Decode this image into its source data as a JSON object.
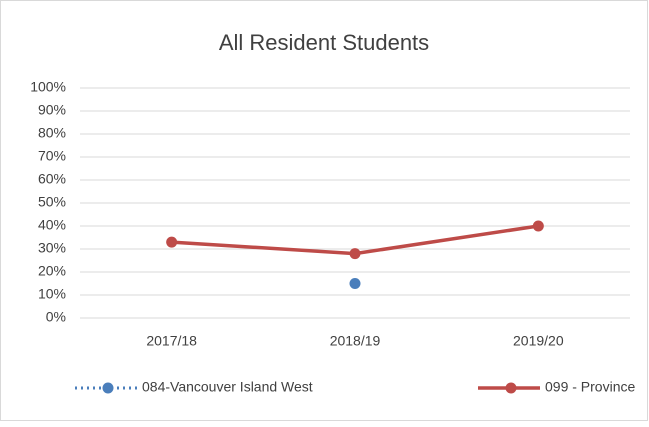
{
  "chart_data": {
    "type": "line",
    "title": "All Resident Students",
    "categories": [
      "2017/18",
      "2018/19",
      "2019/20"
    ],
    "series": [
      {
        "name": "084-Vancouver Island West",
        "color": "#4a7ebb",
        "line_style": "dotted",
        "values": [
          null,
          15,
          null
        ]
      },
      {
        "name": "099 - Province",
        "color": "#be4b48",
        "line_style": "solid",
        "values": [
          33,
          28,
          40
        ]
      }
    ],
    "ylim": [
      0,
      100
    ],
    "yticks": [
      {
        "value": 0,
        "label": "0%"
      },
      {
        "value": 10,
        "label": "10%"
      },
      {
        "value": 20,
        "label": "20%"
      },
      {
        "value": 30,
        "label": "30%"
      },
      {
        "value": 40,
        "label": "40%"
      },
      {
        "value": 50,
        "label": "50%"
      },
      {
        "value": 60,
        "label": "60%"
      },
      {
        "value": 70,
        "label": "70%"
      },
      {
        "value": 80,
        "label": "80%"
      },
      {
        "value": 90,
        "label": "90%"
      },
      {
        "value": 100,
        "label": "100%"
      }
    ],
    "grid": true,
    "legend": "bottom"
  }
}
